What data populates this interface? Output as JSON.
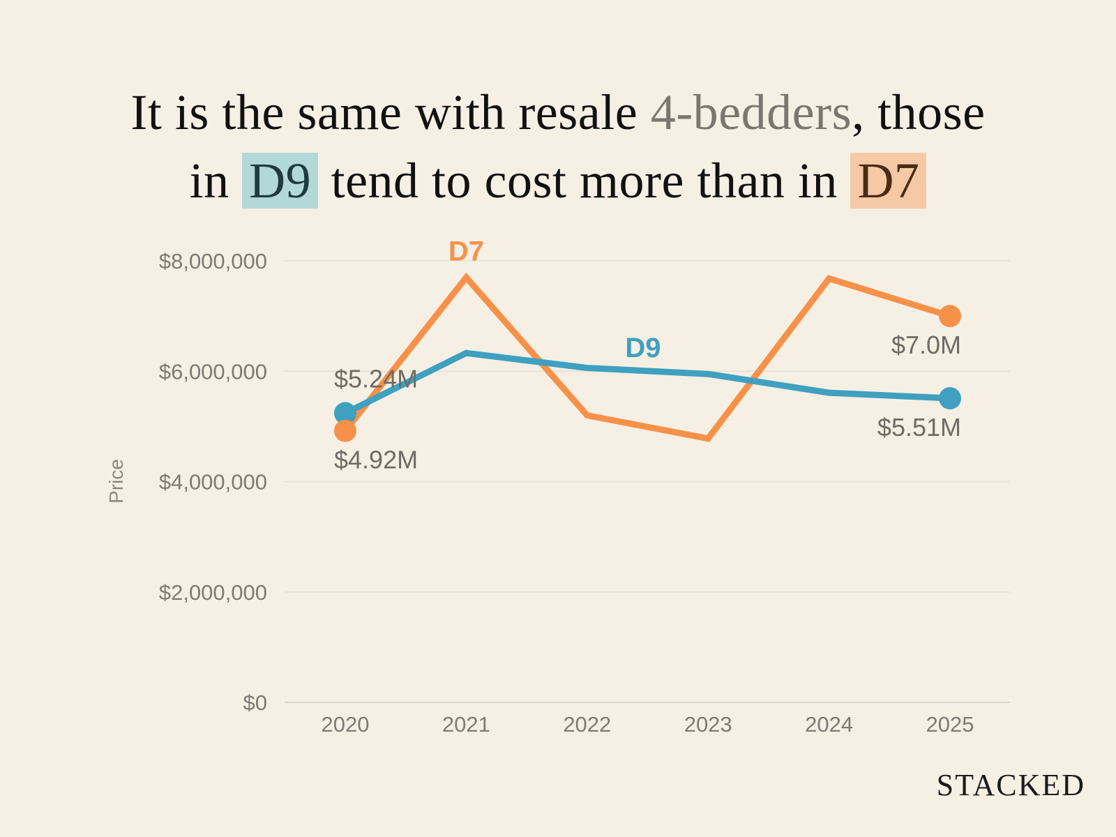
{
  "title": {
    "line1_a": "It is the same with resale ",
    "line1_b": "4-bedders",
    "line1_c": ", those",
    "line2_a": "in ",
    "line2_d9": "D9",
    "line2_b": " tend to cost more than in ",
    "line2_d7": "D7"
  },
  "logo": "STACKED",
  "chart_data": {
    "type": "line",
    "ylabel": "Price",
    "xlabel": "",
    "x": [
      "2020",
      "2021",
      "2022",
      "2023",
      "2024",
      "2025"
    ],
    "ylim": [
      0,
      8000000
    ],
    "yticks": [
      {
        "value": 0,
        "label": "$0"
      },
      {
        "value": 2000000,
        "label": "$2,000,000"
      },
      {
        "value": 4000000,
        "label": "$4,000,000"
      },
      {
        "value": 6000000,
        "label": "$6,000,000"
      },
      {
        "value": 8000000,
        "label": "$8,000,000"
      }
    ],
    "grid": true,
    "series": [
      {
        "name": "D7",
        "color": "#f7914a",
        "values": [
          4920000,
          7700000,
          5200000,
          4780000,
          7680000,
          7000000
        ],
        "start_label": "$4.92M",
        "end_label": "$7.0M"
      },
      {
        "name": "D9",
        "color": "#3fa0c0",
        "values": [
          5240000,
          6330000,
          6060000,
          5950000,
          5610000,
          5510000
        ],
        "start_label": "$5.24M",
        "end_label": "$5.51M"
      }
    ]
  }
}
